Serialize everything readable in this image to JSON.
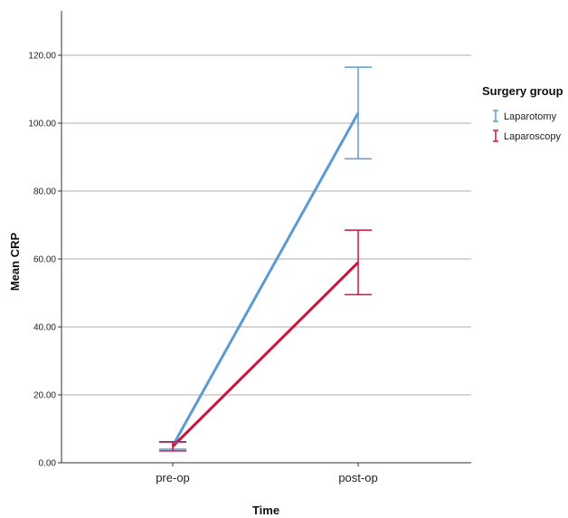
{
  "chart_data": {
    "type": "line",
    "xlabel": "Time",
    "ylabel": "Mean CRP",
    "categories": [
      "pre-op",
      "post-op"
    ],
    "ylim": [
      0,
      130
    ],
    "yticks": [
      "0.00",
      "20.00",
      "40.00",
      "60.00",
      "80.00",
      "100.00",
      "120.00"
    ],
    "grid": true,
    "legend_title": "Surgery group",
    "legend_position": "right",
    "series": [
      {
        "name": "Laparotomy",
        "color": "#5b9bd5",
        "values": [
          5,
          103
        ],
        "error_low": [
          4,
          89.5
        ],
        "error_high": [
          6,
          116.5
        ]
      },
      {
        "name": "Laparoscopy",
        "color": "#d0133b",
        "values": [
          4.8,
          59
        ],
        "error_low": [
          3.5,
          49.5
        ],
        "error_high": [
          6.2,
          68.5
        ]
      }
    ]
  }
}
